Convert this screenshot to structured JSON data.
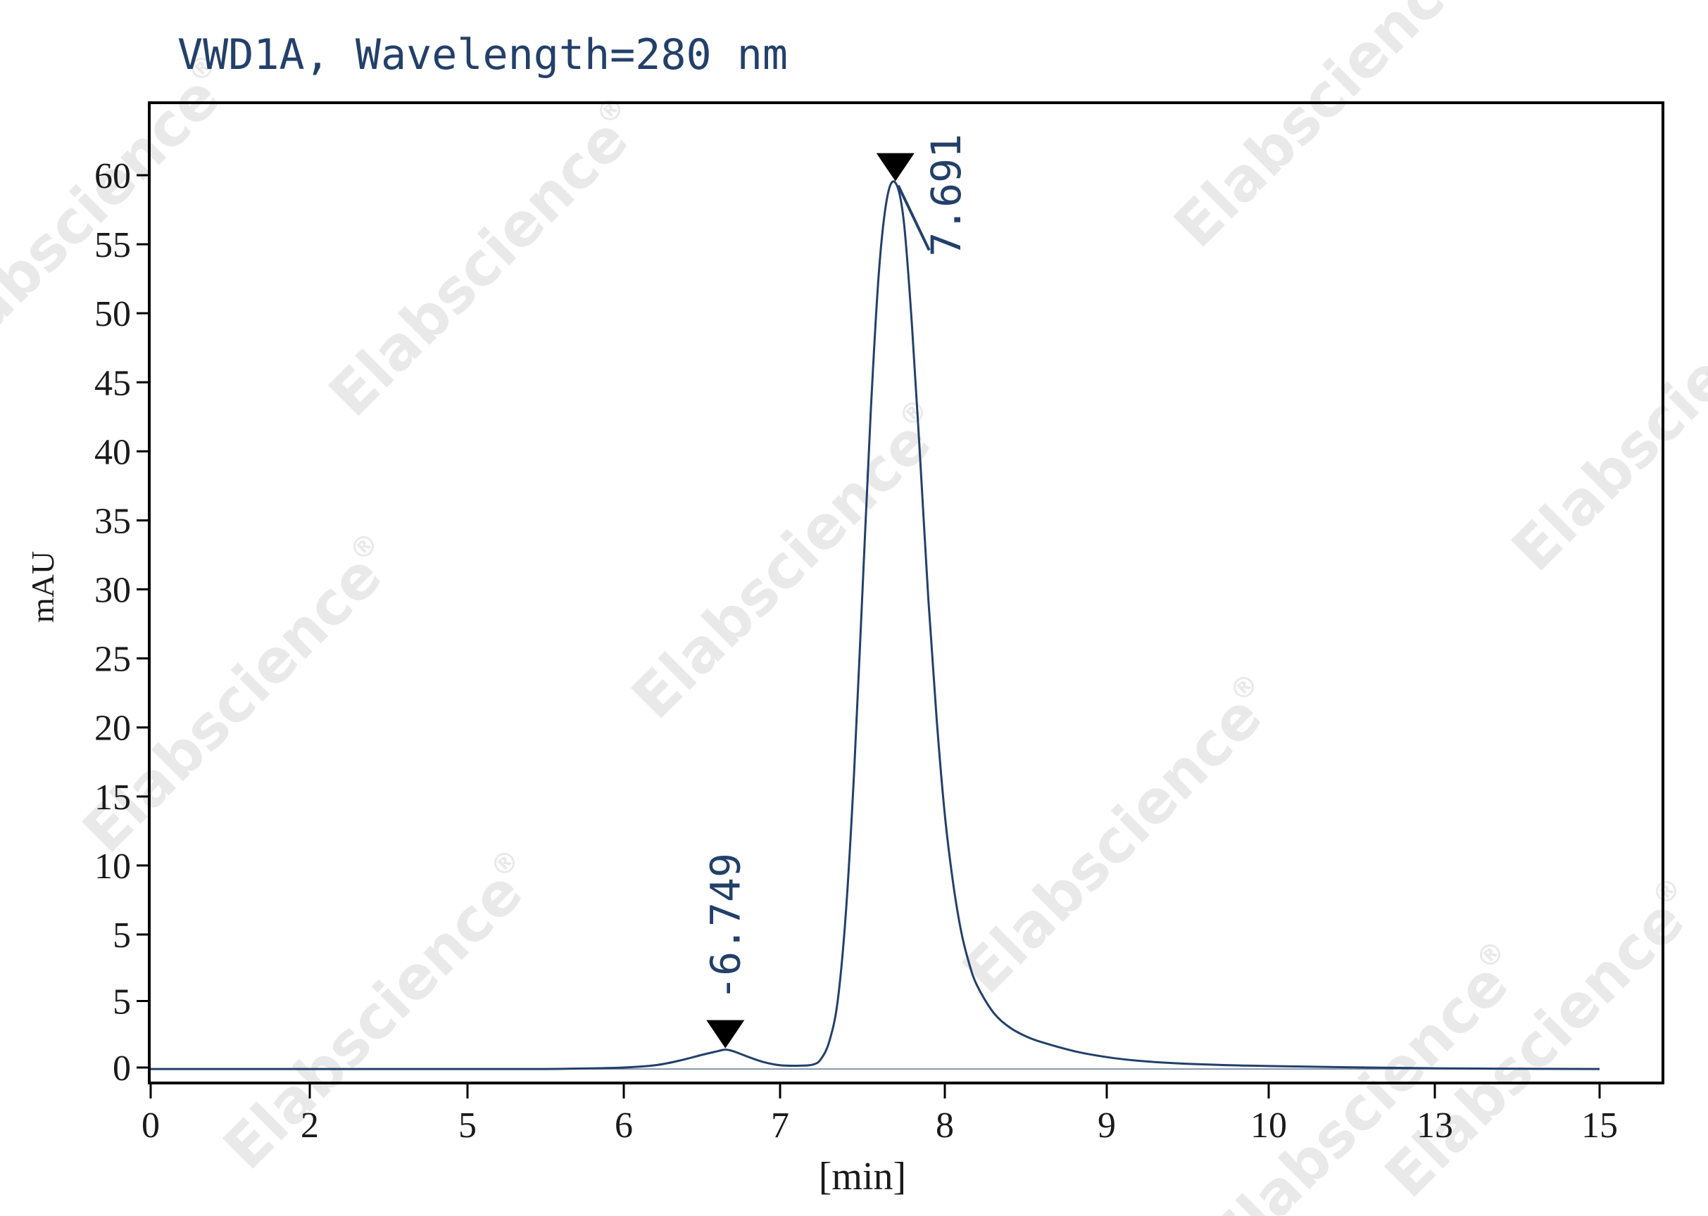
{
  "chart_data": {
    "type": "line",
    "title": "VWD1A, Wavelength=280 nm",
    "xlabel": "[min]",
    "ylabel": "mAU",
    "x_tick_labels": [
      "0",
      "2",
      "5",
      "6",
      "7",
      "8",
      "9",
      "10",
      "13",
      "15"
    ],
    "y_tick_labels": [
      "0",
      "5",
      "5",
      "10",
      "15",
      "20",
      "25",
      "30",
      "35",
      "40",
      "45",
      "50",
      "55",
      "60"
    ],
    "ylim": [
      -1.2,
      63
    ],
    "grid": false,
    "legend": "none",
    "peaks": [
      {
        "label": "6.749",
        "x": 6.65,
        "y": 1.2
      },
      {
        "label": "7.691",
        "x": 7.7,
        "y": 59.5
      }
    ],
    "series": [
      {
        "x": [
          0,
          3,
          5,
          5.5,
          5.8,
          6.0,
          6.2,
          6.35,
          6.5,
          6.6,
          6.65,
          6.7,
          6.8,
          6.9,
          7.0,
          7.1,
          7.2,
          7.25,
          7.3,
          7.35,
          7.4,
          7.45,
          7.5,
          7.55,
          7.6,
          7.65,
          7.7,
          7.75,
          7.8,
          7.85,
          7.9,
          7.95,
          8.0,
          8.05,
          8.1,
          8.15,
          8.2,
          8.3,
          8.4,
          8.5,
          8.6,
          8.8,
          9.0,
          9.2,
          9.5,
          10.0,
          13.0,
          15.0
        ],
        "y": [
          -0.1,
          -0.1,
          -0.1,
          -0.1,
          -0.05,
          0.0,
          0.15,
          0.45,
          0.85,
          1.1,
          1.2,
          1.1,
          0.7,
          0.35,
          0.15,
          0.12,
          0.2,
          0.6,
          1.8,
          4.5,
          10.5,
          20.0,
          32.0,
          44.0,
          53.5,
          58.5,
          59.5,
          57.0,
          50.0,
          41.0,
          31.5,
          23.5,
          17.0,
          12.5,
          9.2,
          7.0,
          5.5,
          3.7,
          2.7,
          2.1,
          1.7,
          1.1,
          0.7,
          0.45,
          0.25,
          0.1,
          -0.05,
          -0.1
        ]
      }
    ]
  },
  "watermark": {
    "text": "Elabscience",
    "mark": "®"
  },
  "colors": {
    "trace": "#23406a",
    "axis": "#000000",
    "title": "#23406a"
  }
}
